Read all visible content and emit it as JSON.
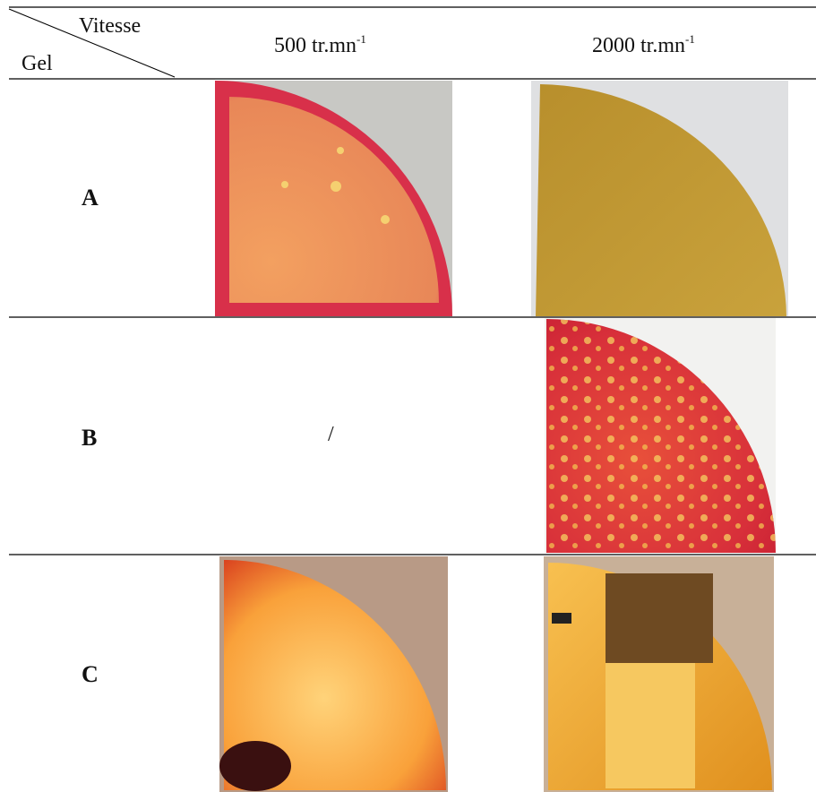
{
  "table": {
    "corner_top": "Vitesse",
    "corner_bottom": "Gel",
    "columns": [
      {
        "text": "500 tr.mn",
        "sup": "-1"
      },
      {
        "text": "2000 tr.mn",
        "sup": "-1"
      }
    ],
    "rows": [
      {
        "label": "A"
      },
      {
        "label": "B",
        "cell": "/"
      },
      {
        "label": "C"
      }
    ]
  }
}
